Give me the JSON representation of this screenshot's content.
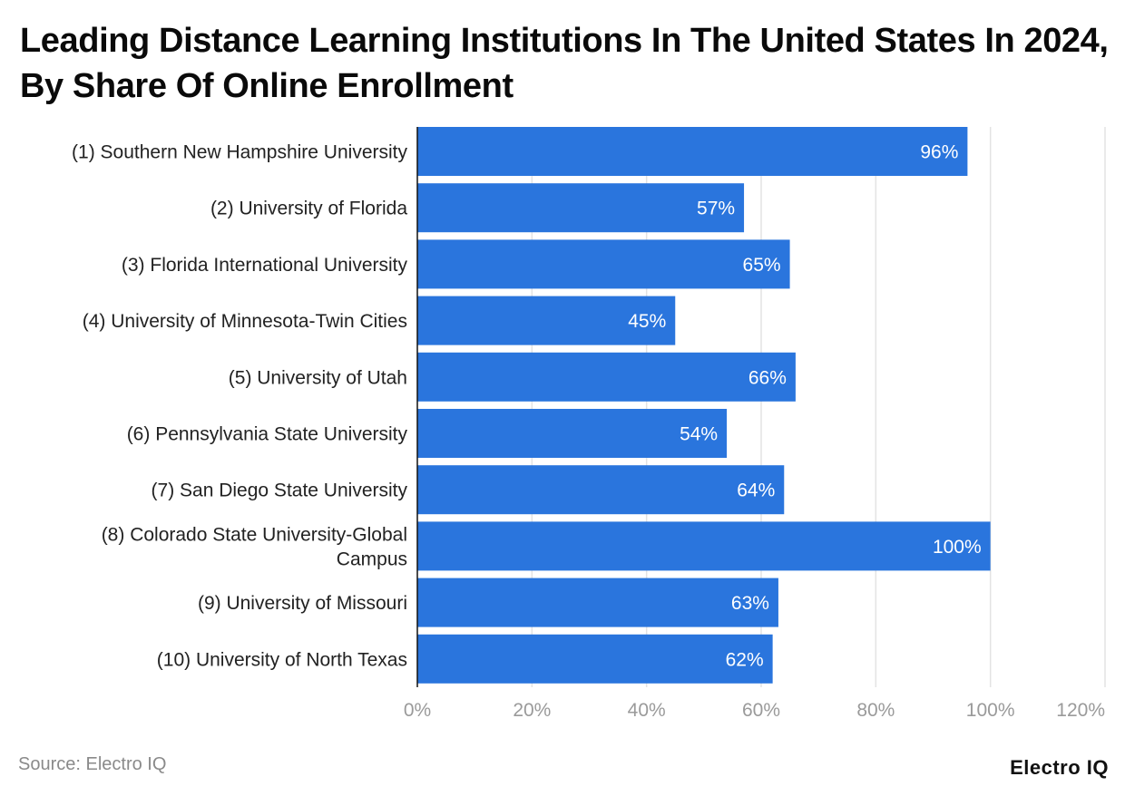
{
  "title": "Leading Distance Learning Institutions In The United States In 2024, By Share Of Online Enrollment",
  "source": "Source: Electro IQ",
  "brand": "Electro IQ",
  "colors": {
    "bar": "#2a75dd",
    "grid": "#e3e3e3",
    "axis_line": "#111111",
    "tick_label": "#9a9a9a",
    "category_label": "#222222",
    "value_label": "#ffffff"
  },
  "chart_data": {
    "type": "bar",
    "orientation": "horizontal",
    "categories": [
      "(1) Southern New Hampshire University",
      "(2) University of Florida",
      "(3) Florida International University",
      "(4) University of Minnesota-Twin Cities",
      "(5) University of Utah",
      "(6) Pennsylvania State University",
      "(7) San Diego State University",
      "(8) Colorado State University-Global Campus",
      "(9) University of Missouri",
      "(10) University of North Texas"
    ],
    "values": [
      96,
      57,
      65,
      45,
      66,
      54,
      64,
      100,
      63,
      62
    ],
    "value_labels": [
      "96%",
      "57%",
      "65%",
      "45%",
      "66%",
      "54%",
      "64%",
      "100%",
      "63%",
      "62%"
    ],
    "xlim": [
      0,
      120
    ],
    "x_ticks": [
      0,
      20,
      40,
      60,
      80,
      100,
      120
    ],
    "x_tick_labels": [
      "0%",
      "20%",
      "40%",
      "60%",
      "80%",
      "100%",
      "120%"
    ],
    "grid": true,
    "xlabel": "",
    "ylabel": ""
  }
}
